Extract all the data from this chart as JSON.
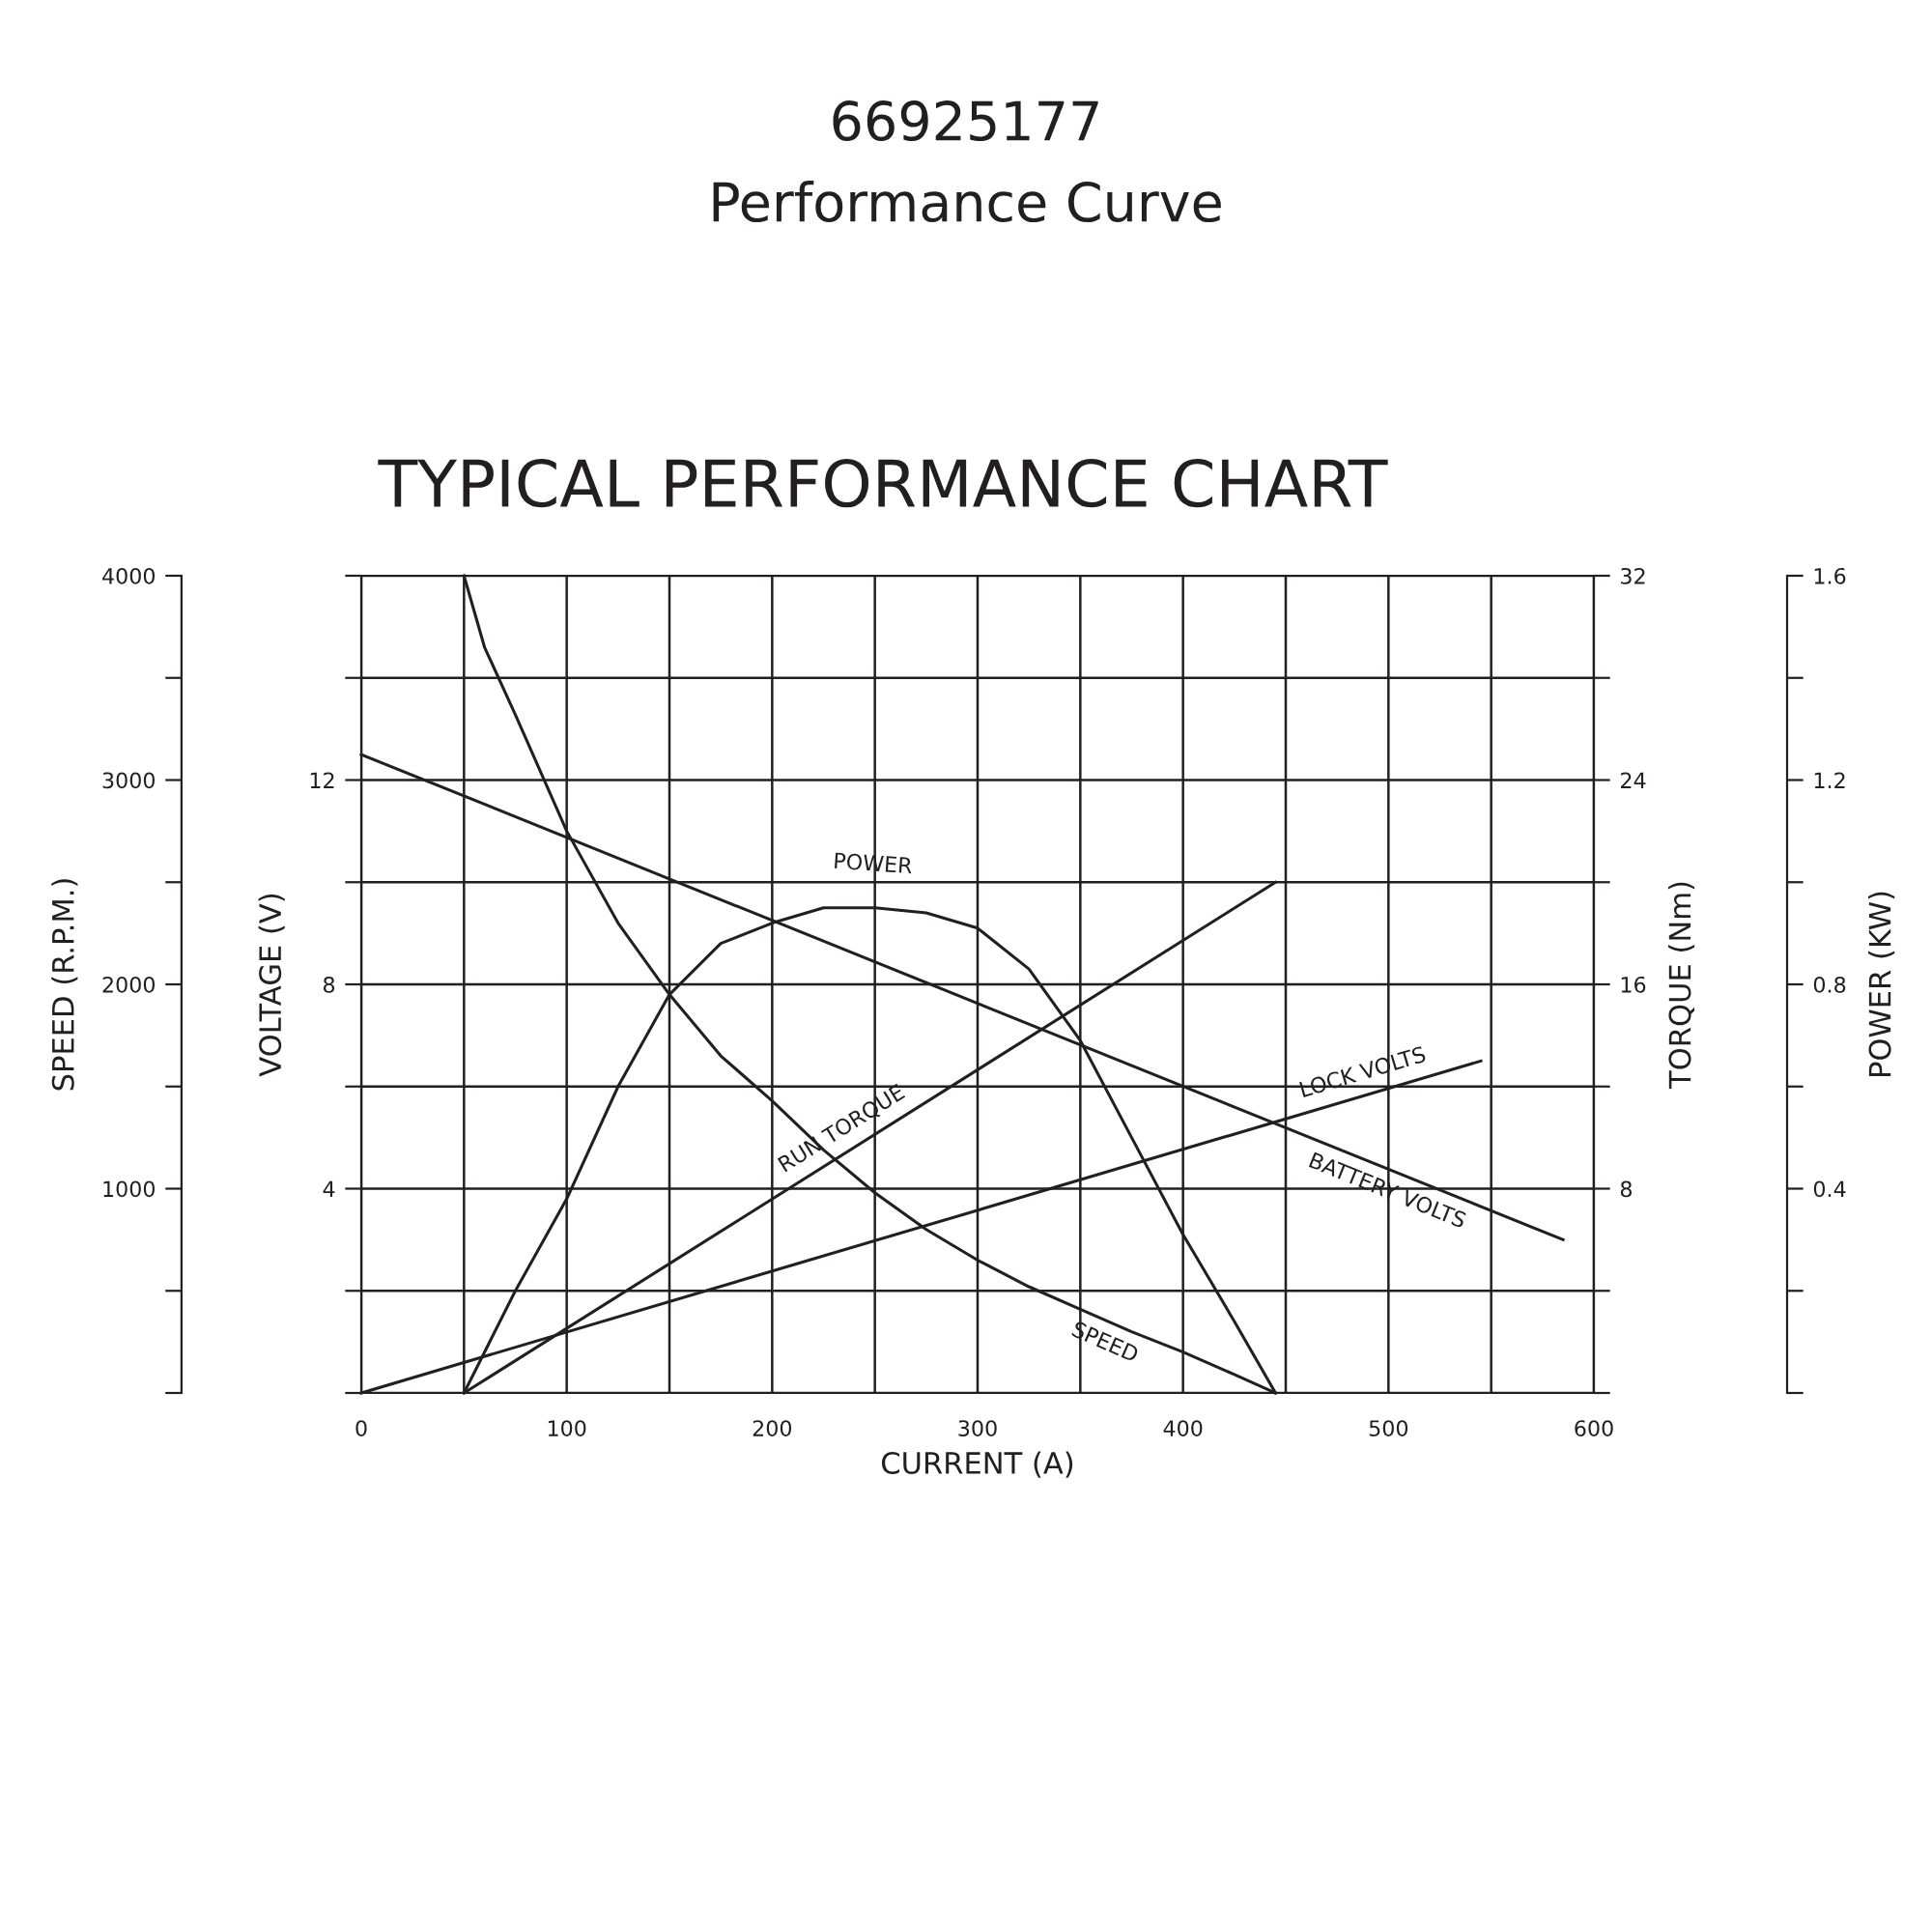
{
  "chart_data": [
    {
      "type": "line",
      "title": "66925177",
      "subtitle": "Performance Curve",
      "annotations": [
        "TYPICAL PERFORMANCE CHART"
      ],
      "xlabel": "CURRENT (A)",
      "ylabel": "SPEED (R.P.M.)",
      "y2label": "VOLTAGE (V)",
      "xlim": [
        0,
        600
      ],
      "xticks": [
        0,
        {
          "value": 50,
          "label": null
        },
        100,
        {
          "value": 150,
          "label": null
        },
        200,
        {
          "value": 250,
          "label": null
        },
        300,
        {
          "value": 350,
          "label": null
        },
        400,
        {
          "value": 450,
          "label": null
        },
        500,
        {
          "value": 550,
          "label": null
        },
        600
      ],
      "ylim": [
        0,
        4000
      ],
      "yticks": [
        {
          "value": 0,
          "label": null
        },
        {
          "value": 500,
          "label": null
        },
        1000,
        {
          "value": 1500,
          "label": null
        },
        2000,
        {
          "value": 2500,
          "label": null
        },
        3000,
        {
          "value": 3500,
          "label": null
        },
        4000
      ],
      "y2lim": [
        0,
        16
      ],
      "y2ticks": [
        {
          "value": 0,
          "label": null
        },
        {
          "value": 2,
          "label": null
        },
        4,
        {
          "value": 6,
          "label": null
        },
        8,
        {
          "value": 10,
          "label": null
        },
        12,
        {
          "value": 14,
          "label": null
        },
        {
          "value": 16,
          "label": null
        }
      ],
      "grid": true,
      "line_style": "solid",
      "series": [
        {
          "name": "SPEED",
          "color": "#231f20",
          "axis": "y",
          "x": [
            50,
            60,
            75,
            100,
            125,
            150,
            175,
            200,
            225,
            250,
            275,
            300,
            325,
            350,
            375,
            400,
            425,
            445
          ],
          "values": [
            4000,
            3650,
            3320,
            2750,
            2300,
            1950,
            1650,
            1430,
            1190,
            980,
            800,
            650,
            520,
            410,
            300,
            200,
            90,
            0
          ]
        },
        {
          "name": "LOCK VOLTS",
          "color": "#231f20",
          "axis": "y2",
          "x": [
            0,
            545
          ],
          "values": [
            0,
            6.5
          ]
        },
        {
          "name": "BATTERY VOLTS",
          "color": "#231f20",
          "axis": "y2",
          "x": [
            0,
            585
          ],
          "values": [
            12.5,
            3.0
          ]
        }
      ]
    },
    {
      "type": "line",
      "tick_labels": "y",
      "ylabel": "TORQUE (Nm)",
      "y2label": "POWER (KW)",
      "xlim": [
        0,
        600
      ],
      "ylim": [
        0,
        32
      ],
      "yticks": [
        {
          "value": 0,
          "label": null
        },
        {
          "value": 4,
          "label": null
        },
        8,
        {
          "value": 12,
          "label": null
        },
        16,
        {
          "value": 20,
          "label": null
        },
        24,
        {
          "value": 28,
          "label": null
        },
        32
      ],
      "y2lim": [
        0,
        1.6
      ],
      "y2ticks": [
        {
          "value": 0,
          "label": null
        },
        {
          "value": 0.2,
          "label": null
        },
        0.4,
        {
          "value": 0.6,
          "label": null
        },
        0.8,
        {
          "value": 1.0,
          "label": null
        },
        1.2,
        {
          "value": 1.4,
          "label": null
        },
        1.6
      ],
      "line_style": "solid",
      "series": [
        {
          "name": "POWER",
          "color": "#231f20",
          "axis": "y2",
          "x": [
            50,
            60,
            75,
            100,
            125,
            150,
            175,
            200,
            225,
            250,
            275,
            300,
            325,
            350,
            375,
            400,
            425,
            445
          ],
          "values": [
            0,
            0.08,
            0.2,
            0.38,
            0.6,
            0.78,
            0.88,
            0.92,
            0.95,
            0.95,
            0.94,
            0.91,
            0.83,
            0.69,
            0.5,
            0.31,
            0.14,
            0
          ]
        },
        {
          "name": "RUN TORQUE",
          "color": "#231f20",
          "axis": "y",
          "x": [
            50,
            445
          ],
          "values": [
            0,
            20
          ]
        }
      ]
    }
  ]
}
